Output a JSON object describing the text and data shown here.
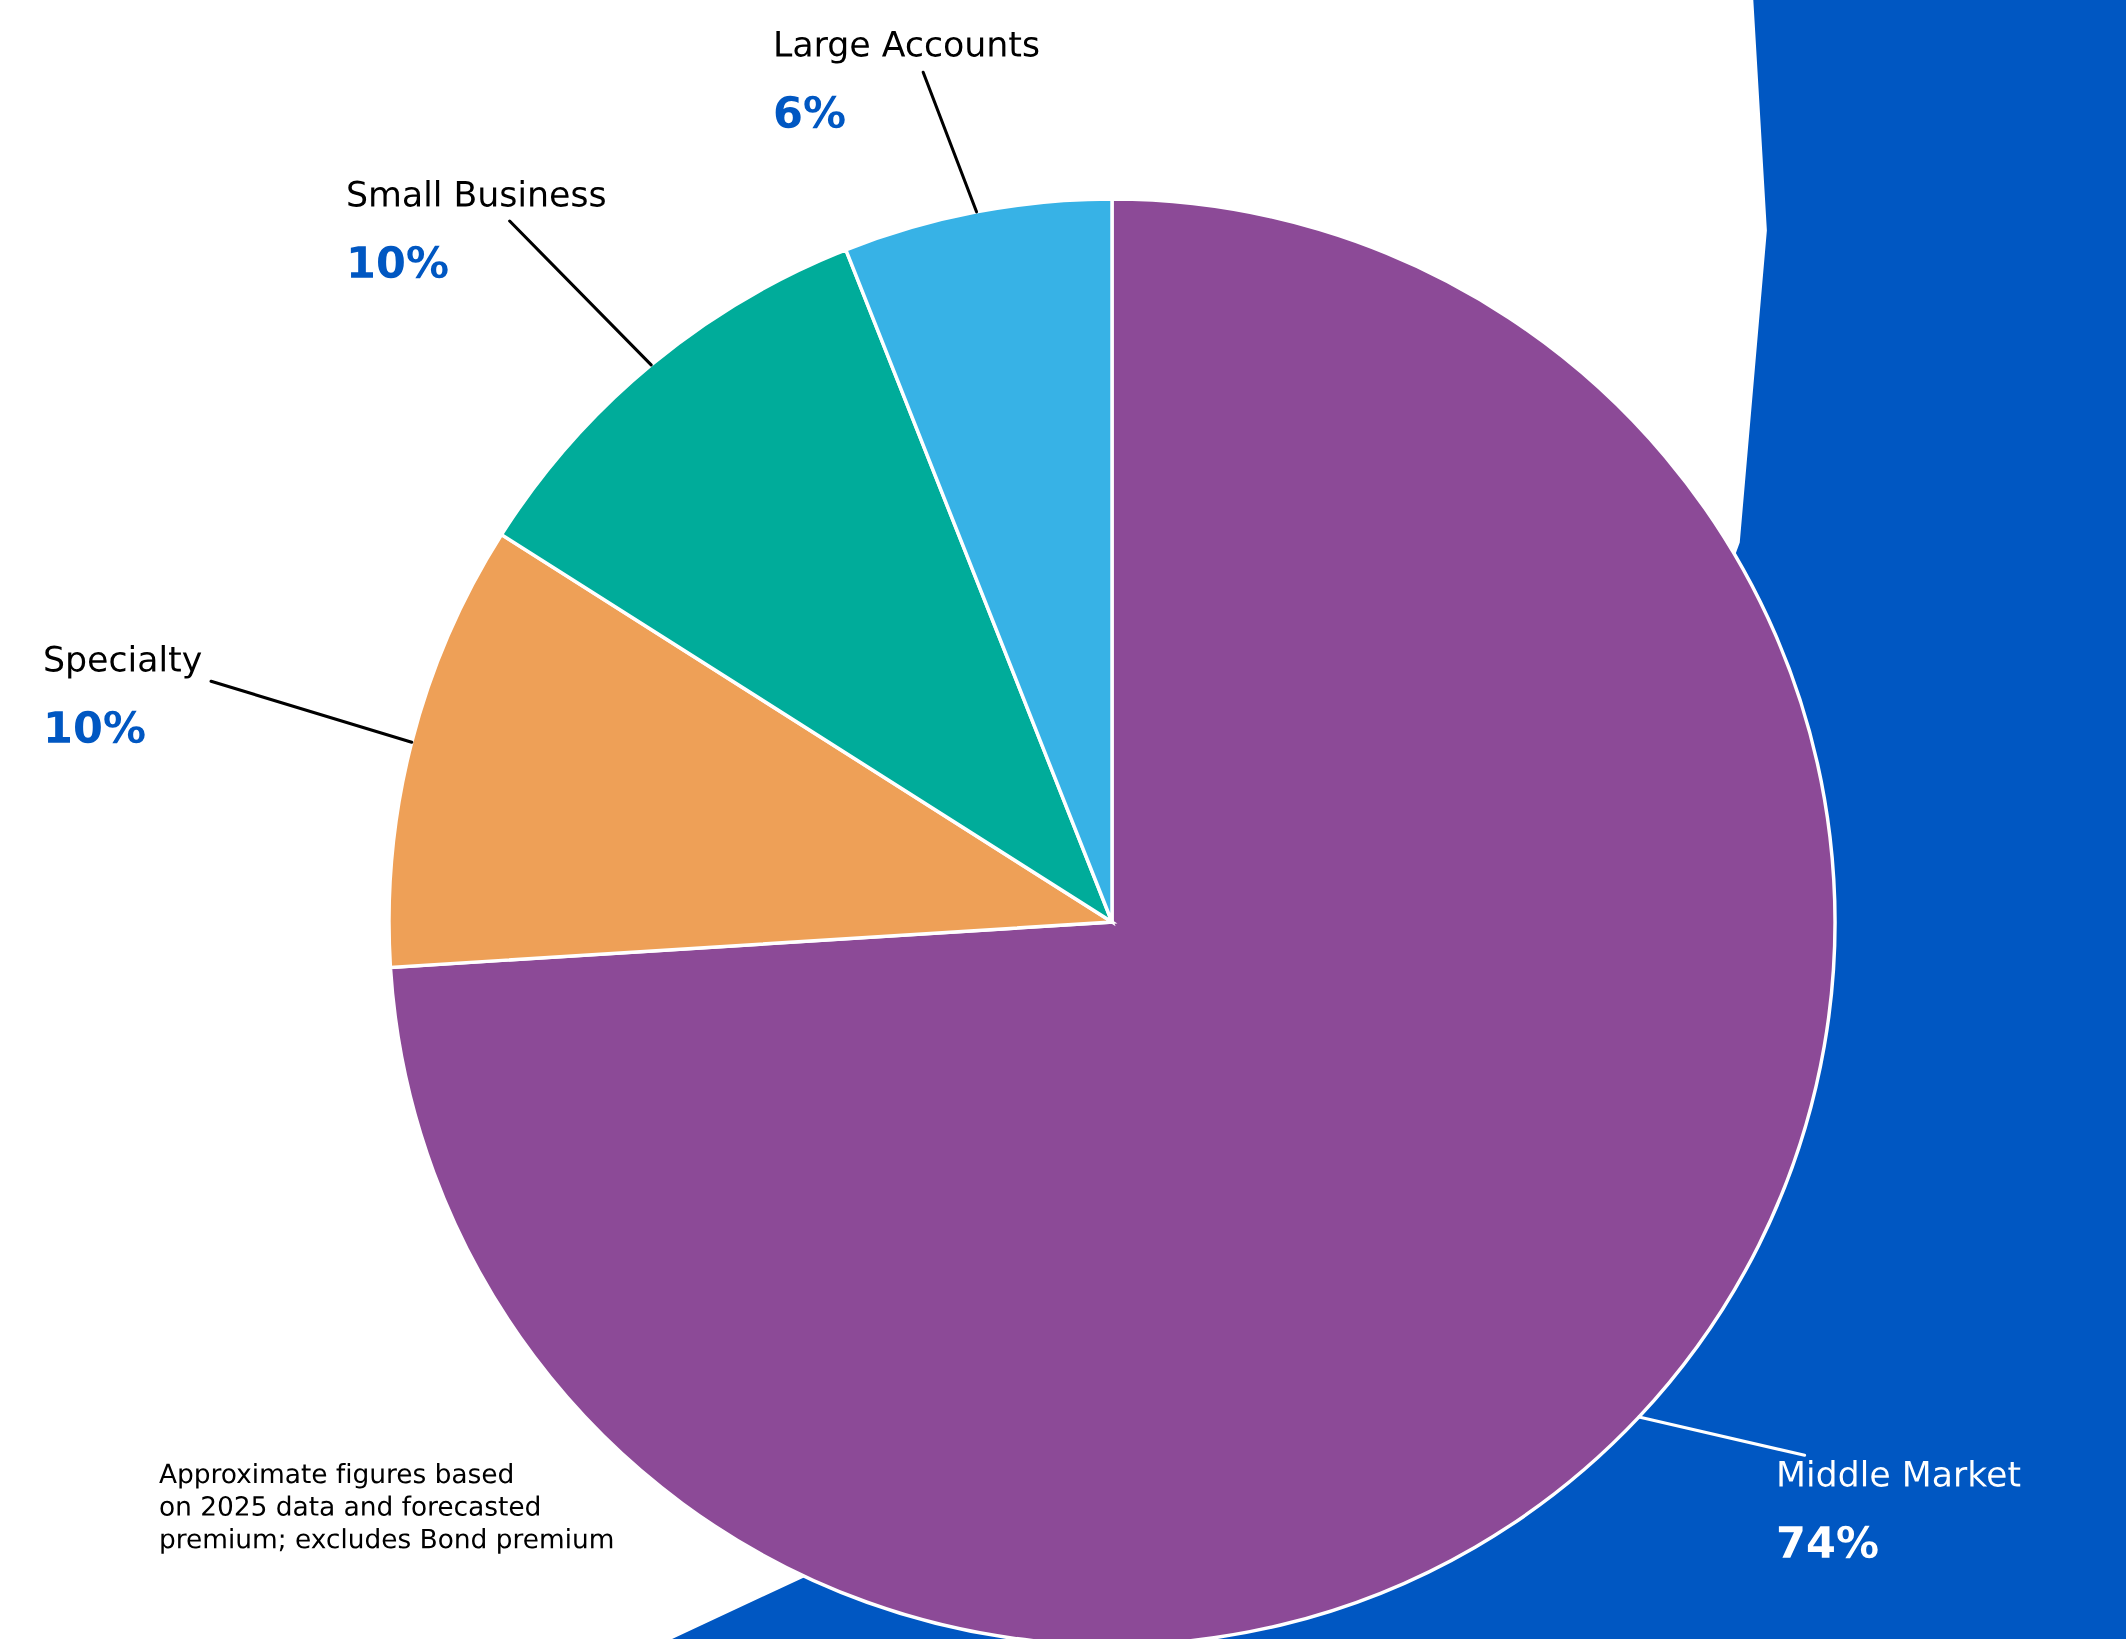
{
  "chart_data": {
    "type": "pie",
    "categories": [
      "Middle Market",
      "Specialty",
      "Small Business",
      "Large Accounts"
    ],
    "values": [
      74,
      10,
      10,
      6
    ],
    "colors": [
      "#8c4a97",
      "#eea057",
      "#00ac9a",
      "#37b2e6"
    ],
    "value_labels": [
      "74%",
      "10%",
      "10%",
      "6%"
    ],
    "annotations": [
      "Approximate figures based\non 2025 data and forecasted\npremium; excludes Bond premium"
    ]
  }
}
